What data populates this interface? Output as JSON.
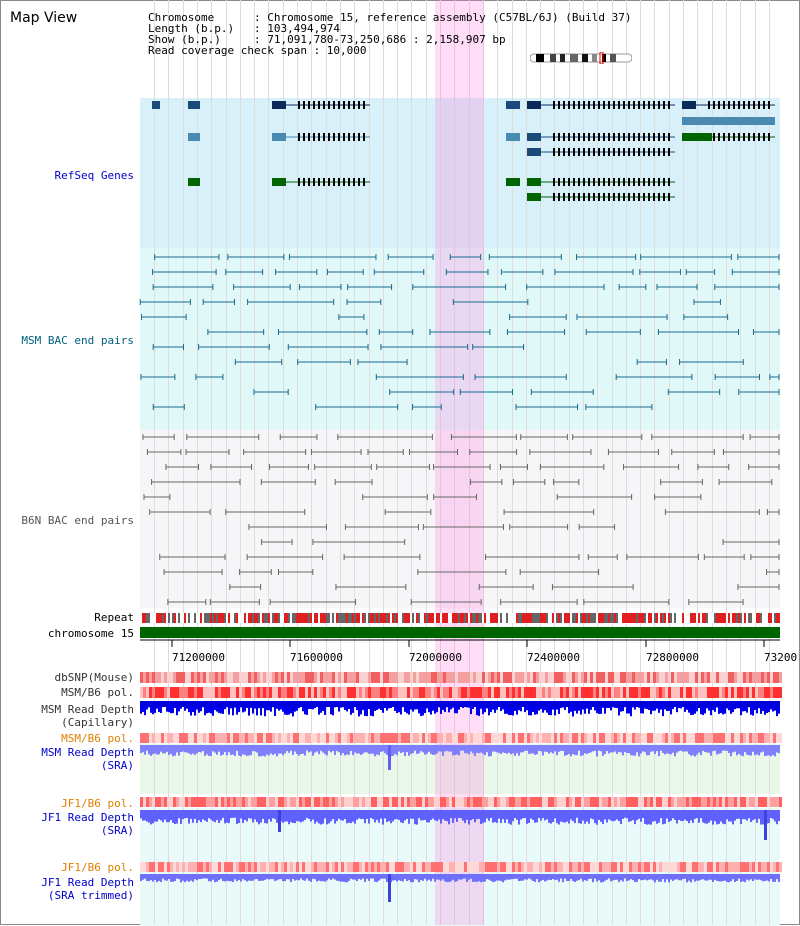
{
  "title": "Map View",
  "info": {
    "line1": "Chromosome      : Chromosome 15, reference assembly (C57BL/6J) (Build 37)",
    "line2": "Length (b.p.)   : 103,494,974",
    "line3": "Show (b.p.)     : 71,091,780-73,250,686 : 2,158,907 bp",
    "line4": "Read coverage check span : 10,000"
  },
  "tracks": {
    "refseq": "RefSeq Genes",
    "msm_bac": "MSM BAC end pairs",
    "b6n_bac": "B6N BAC end pairs",
    "repeat": "Repeat",
    "chrom": "chromosome 15",
    "dbsnp": "dbSNP(Mouse)",
    "msm_pol": "MSM/B6 pol.",
    "msm_depth_cap": "MSM Read Depth\n(Capillary)",
    "msm_pol2": "MSM/B6 pol.",
    "msm_depth_sra": "MSM Read Depth\n(SRA)",
    "jf1_pol": "JF1/B6 pol.",
    "jf1_depth_sra": "JF1 Read Depth\n(SRA)",
    "jf1_pol2": "JF1/B6 pol.",
    "jf1_depth_trim": "JF1 Read Depth\n(SRA trimmed)"
  },
  "axis": {
    "ticks": [
      "71200000",
      "71600000",
      "72000000",
      "72400000",
      "72800000",
      "73200"
    ]
  },
  "colors": {
    "refseq_bg": "#d8f0fa",
    "msm_bg": "#e0f8f8",
    "b6n_bg": "#f5f5f7",
    "label_blue": "#0000cc",
    "label_teal": "#006080",
    "label_orange": "#e08000",
    "highlight": "#ffccee",
    "chrom_green": "#006400"
  }
}
